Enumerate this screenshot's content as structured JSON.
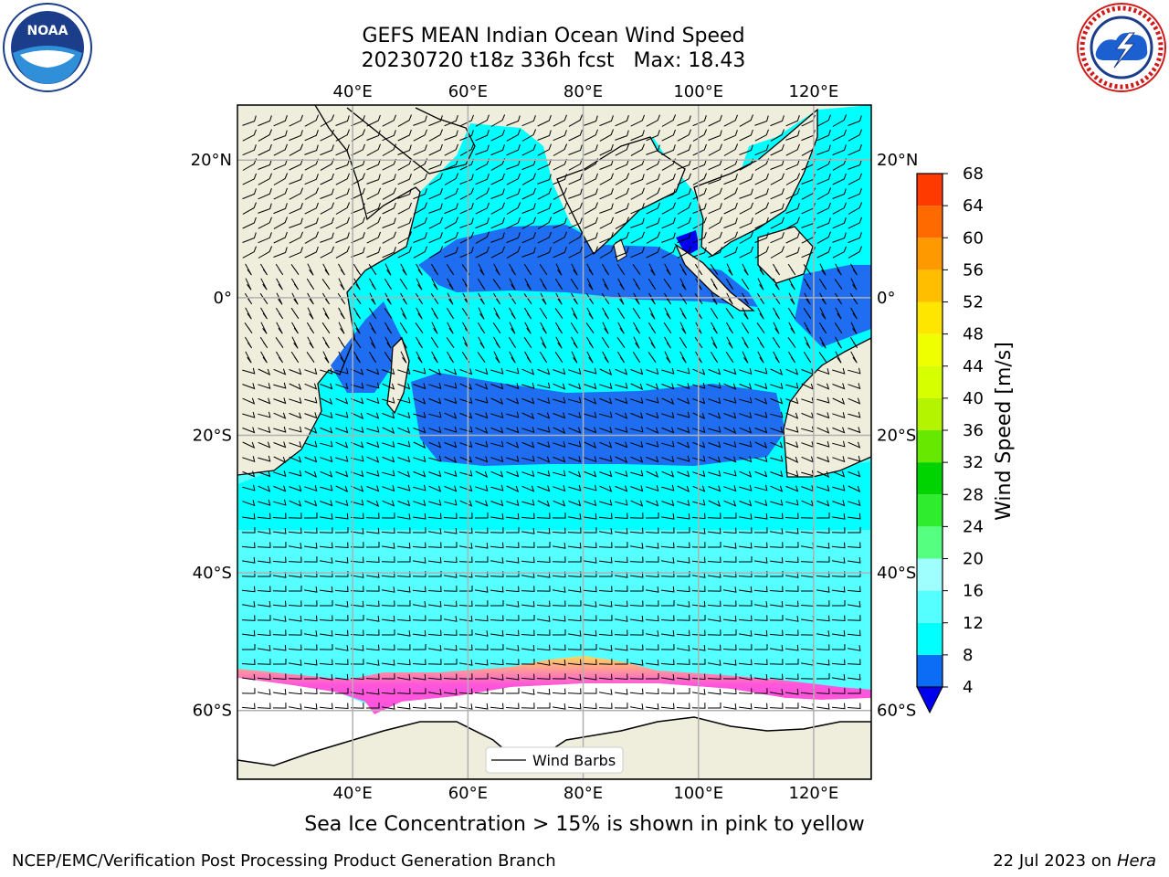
{
  "title": {
    "line1": "GEFS MEAN Indian Ocean Wind Speed",
    "line2": "20230720 t18z 336h fcst   Max: 18.43"
  },
  "map": {
    "lon_range": [
      20,
      130
    ],
    "lat_range": [
      -70,
      28
    ],
    "lon_ticks": [
      "40°E",
      "60°E",
      "80°E",
      "100°E",
      "120°E"
    ],
    "lat_ticks": [
      "20°N",
      "0°",
      "20°S",
      "40°S",
      "60°S"
    ],
    "legend_label": "Wind Barbs",
    "grid": true
  },
  "colorbar": {
    "label": "Wind Speed [m/s]",
    "ticks": [
      "4",
      "8",
      "12",
      "16",
      "20",
      "24",
      "28",
      "32",
      "36",
      "40",
      "44",
      "48",
      "52",
      "56",
      "60",
      "64",
      "68"
    ],
    "colors": [
      "#0b6cf6",
      "#00ffff",
      "#55ffff",
      "#9fffff",
      "#55ff80",
      "#2fec2f",
      "#00d400",
      "#66e800",
      "#b5f400",
      "#d6ff00",
      "#f0ff00",
      "#ffe600",
      "#ffbf00",
      "#ff9900",
      "#ff6a00",
      "#ff3a00",
      "#ff0000"
    ],
    "under_color": "#0000ee"
  },
  "caption": "Sea Ice Concentration > 15% is shown in pink to yellow",
  "footer": {
    "left": "NCEP/EMC/Verification Post Processing Product Generation Branch",
    "date": "22 Jul 2023 on ",
    "host": "Hera"
  },
  "colors": {
    "land": "#efeedc",
    "ocean_light": "#55ffff",
    "ocean_cyan": "#00ffff",
    "ocean_blue": "#1f6ef2",
    "ice_pink": "#ff55dd",
    "ice_yellow": "#ffd75a"
  }
}
